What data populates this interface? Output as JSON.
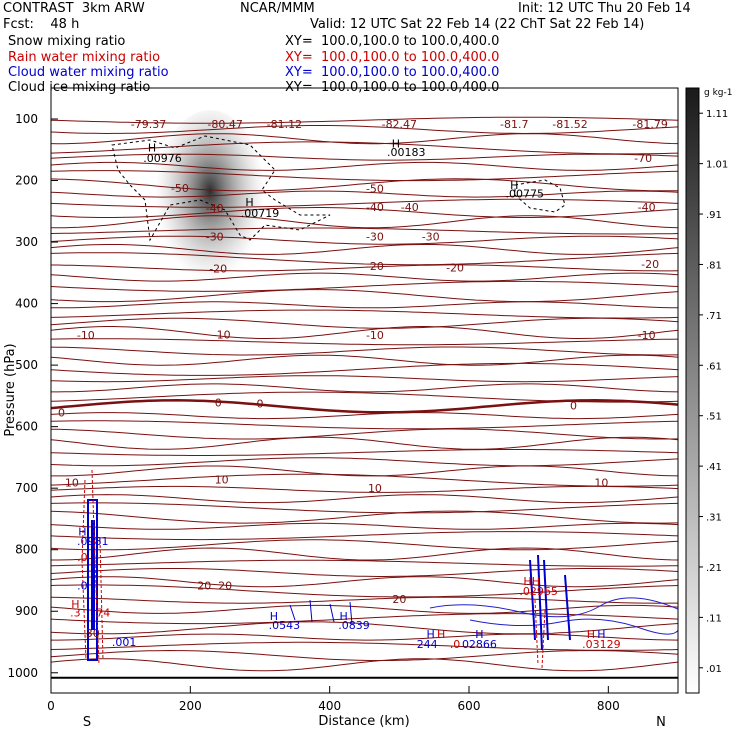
{
  "header": {
    "left_line1": "CONTRAST  3km ARW",
    "center_line1": "NCAR/MMM",
    "right_line1": "Init: 12 UTC Thu 20 Feb 14",
    "left_line2": "Fcst:    48 h",
    "right_line2": "Valid: 12 UTC Sat 22 Feb 14 (22 ChT Sat 22 Feb 14)"
  },
  "fields": [
    {
      "name": "Snow mixing ratio",
      "xy": "XY=  100.0,100.0 to 100.0,400.0",
      "color": "#000000"
    },
    {
      "name": "Rain water mixing ratio",
      "xy": "XY=  100.0,100.0 to 100.0,400.0",
      "color": "#cc0000"
    },
    {
      "name": "Cloud water mixing ratio",
      "xy": "XY=  100.0,100.0 to 100.0,400.0",
      "color": "#0000cc"
    },
    {
      "name": "Cloud ice mixing ratio",
      "xy": "XY=  100.0,100.0 to 100.0,400.0",
      "color": "#000000"
    }
  ],
  "chart_data": {
    "type": "cross-section contour",
    "xlabel": "Distance (km)",
    "ylabel": "Pressure (hPa)",
    "xlim": [
      0,
      900
    ],
    "ylim": [
      1050,
      60
    ],
    "x_ticks": [
      0,
      200,
      400,
      600,
      800
    ],
    "y_ticks": [
      100,
      200,
      300,
      400,
      500,
      600,
      700,
      800,
      900,
      1000
    ],
    "endpoints": {
      "left": "S",
      "right": "N"
    },
    "temperature_contours_C": [
      -80,
      -70,
      -60,
      -50,
      -40,
      -30,
      -20,
      -10,
      0,
      10,
      20,
      30
    ],
    "temperature_labels": [
      {
        "text": "-79.37",
        "x": 140,
        "p": 108
      },
      {
        "text": "-80.47",
        "x": 250,
        "p": 108
      },
      {
        "text": "-81.12",
        "x": 335,
        "p": 108
      },
      {
        "text": "-82.47",
        "x": 500,
        "p": 108
      },
      {
        "text": "-81.7",
        "x": 665,
        "p": 108
      },
      {
        "text": "-81.52",
        "x": 745,
        "p": 108
      },
      {
        "text": "-81.79",
        "x": 860,
        "p": 108
      },
      {
        "text": "-70",
        "x": 850,
        "p": 163
      },
      {
        "text": "-50",
        "x": 185,
        "p": 212
      },
      {
        "text": "-50",
        "x": 465,
        "p": 213
      },
      {
        "text": "-40",
        "x": 235,
        "p": 245
      },
      {
        "text": "-40",
        "x": 465,
        "p": 243
      },
      {
        "text": "-40",
        "x": 515,
        "p": 243
      },
      {
        "text": "-40",
        "x": 855,
        "p": 243
      },
      {
        "text": "-30",
        "x": 235,
        "p": 291
      },
      {
        "text": "-30",
        "x": 465,
        "p": 291
      },
      {
        "text": "-30",
        "x": 545,
        "p": 291
      },
      {
        "text": "-20",
        "x": 240,
        "p": 343
      },
      {
        "text": "-20",
        "x": 465,
        "p": 339
      },
      {
        "text": "-20",
        "x": 580,
        "p": 341
      },
      {
        "text": "-20",
        "x": 860,
        "p": 336
      },
      {
        "text": "-10",
        "x": 50,
        "p": 451
      },
      {
        "text": "-10",
        "x": 245,
        "p": 450
      },
      {
        "text": "-10",
        "x": 465,
        "p": 451
      },
      {
        "text": "-10",
        "x": 855,
        "p": 451
      },
      {
        "text": "0",
        "x": 15,
        "p": 577
      },
      {
        "text": "0",
        "x": 240,
        "p": 561
      },
      {
        "text": "0",
        "x": 300,
        "p": 562
      },
      {
        "text": "0",
        "x": 750,
        "p": 566
      },
      {
        "text": "10",
        "x": 30,
        "p": 691
      },
      {
        "text": "10",
        "x": 245,
        "p": 686
      },
      {
        "text": "10",
        "x": 465,
        "p": 700
      },
      {
        "text": "10",
        "x": 790,
        "p": 691
      },
      {
        "text": "20",
        "x": 220,
        "p": 858
      },
      {
        "text": "20",
        "x": 250,
        "p": 858
      },
      {
        "text": "20",
        "x": 500,
        "p": 880
      },
      {
        "text": "30",
        "x": 60,
        "p": 935
      }
    ],
    "extrema_labels": [
      {
        "text": "H",
        "x": 145,
        "p": 146,
        "color": "#000000"
      },
      {
        "text": ".00976",
        "x": 160,
        "p": 163,
        "color": "#000000"
      },
      {
        "text": "H",
        "x": 495,
        "p": 140,
        "color": "#000000"
      },
      {
        "text": ".00183",
        "x": 510,
        "p": 154,
        "color": "#000000"
      },
      {
        "text": "H",
        "x": 285,
        "p": 235,
        "color": "#000000"
      },
      {
        "text": ".00719",
        "x": 300,
        "p": 253,
        "color": "#000000"
      },
      {
        "text": "H",
        "x": 665,
        "p": 207,
        "color": "#000000"
      },
      {
        "text": ".00775",
        "x": 680,
        "p": 221,
        "color": "#000000"
      },
      {
        "text": "H",
        "x": 45,
        "p": 770,
        "color": "#0000cc"
      },
      {
        "text": ".0981",
        "x": 60,
        "p": 786,
        "color": "#0000cc"
      },
      {
        "text": ".0",
        "x": 45,
        "p": 812,
        "color": "#cc0000"
      },
      {
        "text": ".0",
        "x": 45,
        "p": 858,
        "color": "#0000cc"
      },
      {
        "text": "H",
        "x": 35,
        "p": 888,
        "color": "#cc0000"
      },
      {
        "text": ".3",
        "x": 35,
        "p": 902,
        "color": "#cc0000"
      },
      {
        "text": "74",
        "x": 75,
        "p": 902,
        "color": "#cc0000"
      },
      {
        "text": ".001",
        "x": 105,
        "p": 950,
        "color": "#0000cc"
      },
      {
        "text": "H",
        "x": 320,
        "p": 908,
        "color": "#0000cc"
      },
      {
        "text": ".0543",
        "x": 335,
        "p": 922,
        "color": "#0000cc"
      },
      {
        "text": "H",
        "x": 420,
        "p": 908,
        "color": "#0000cc"
      },
      {
        "text": ".0839",
        "x": 435,
        "p": 922,
        "color": "#0000cc"
      },
      {
        "text": "HH",
        "x": 690,
        "p": 851,
        "color": "#cc0000"
      },
      {
        "text": ".02965",
        "x": 700,
        "p": 867,
        "color": "#cc0000"
      },
      {
        "text": "H",
        "x": 545,
        "p": 937,
        "color": "#0000cc"
      },
      {
        "text": "H",
        "x": 560,
        "p": 937,
        "color": "#cc0000"
      },
      {
        "text": "H",
        "x": 615,
        "p": 937,
        "color": "#0000cc"
      },
      {
        "text": "244",
        "x": 540,
        "p": 953,
        "color": "#0000cc"
      },
      {
        "text": ".0",
        "x": 580,
        "p": 953,
        "color": "#cc0000"
      },
      {
        "text": "02866",
        "x": 615,
        "p": 953,
        "color": "#0000cc"
      },
      {
        "text": "H",
        "x": 775,
        "p": 937,
        "color": "#cc0000"
      },
      {
        "text": "H",
        "x": 790,
        "p": 937,
        "color": "#0000cc"
      },
      {
        "text": ".03129",
        "x": 790,
        "p": 953,
        "color": "#cc0000"
      }
    ],
    "colorbar": {
      "unit": "g kg-1",
      "ticks": [
        ".01",
        ".11",
        ".21",
        ".31",
        ".41",
        ".51",
        ".61",
        ".71",
        ".81",
        ".91",
        "1.01",
        "1.11"
      ]
    }
  }
}
